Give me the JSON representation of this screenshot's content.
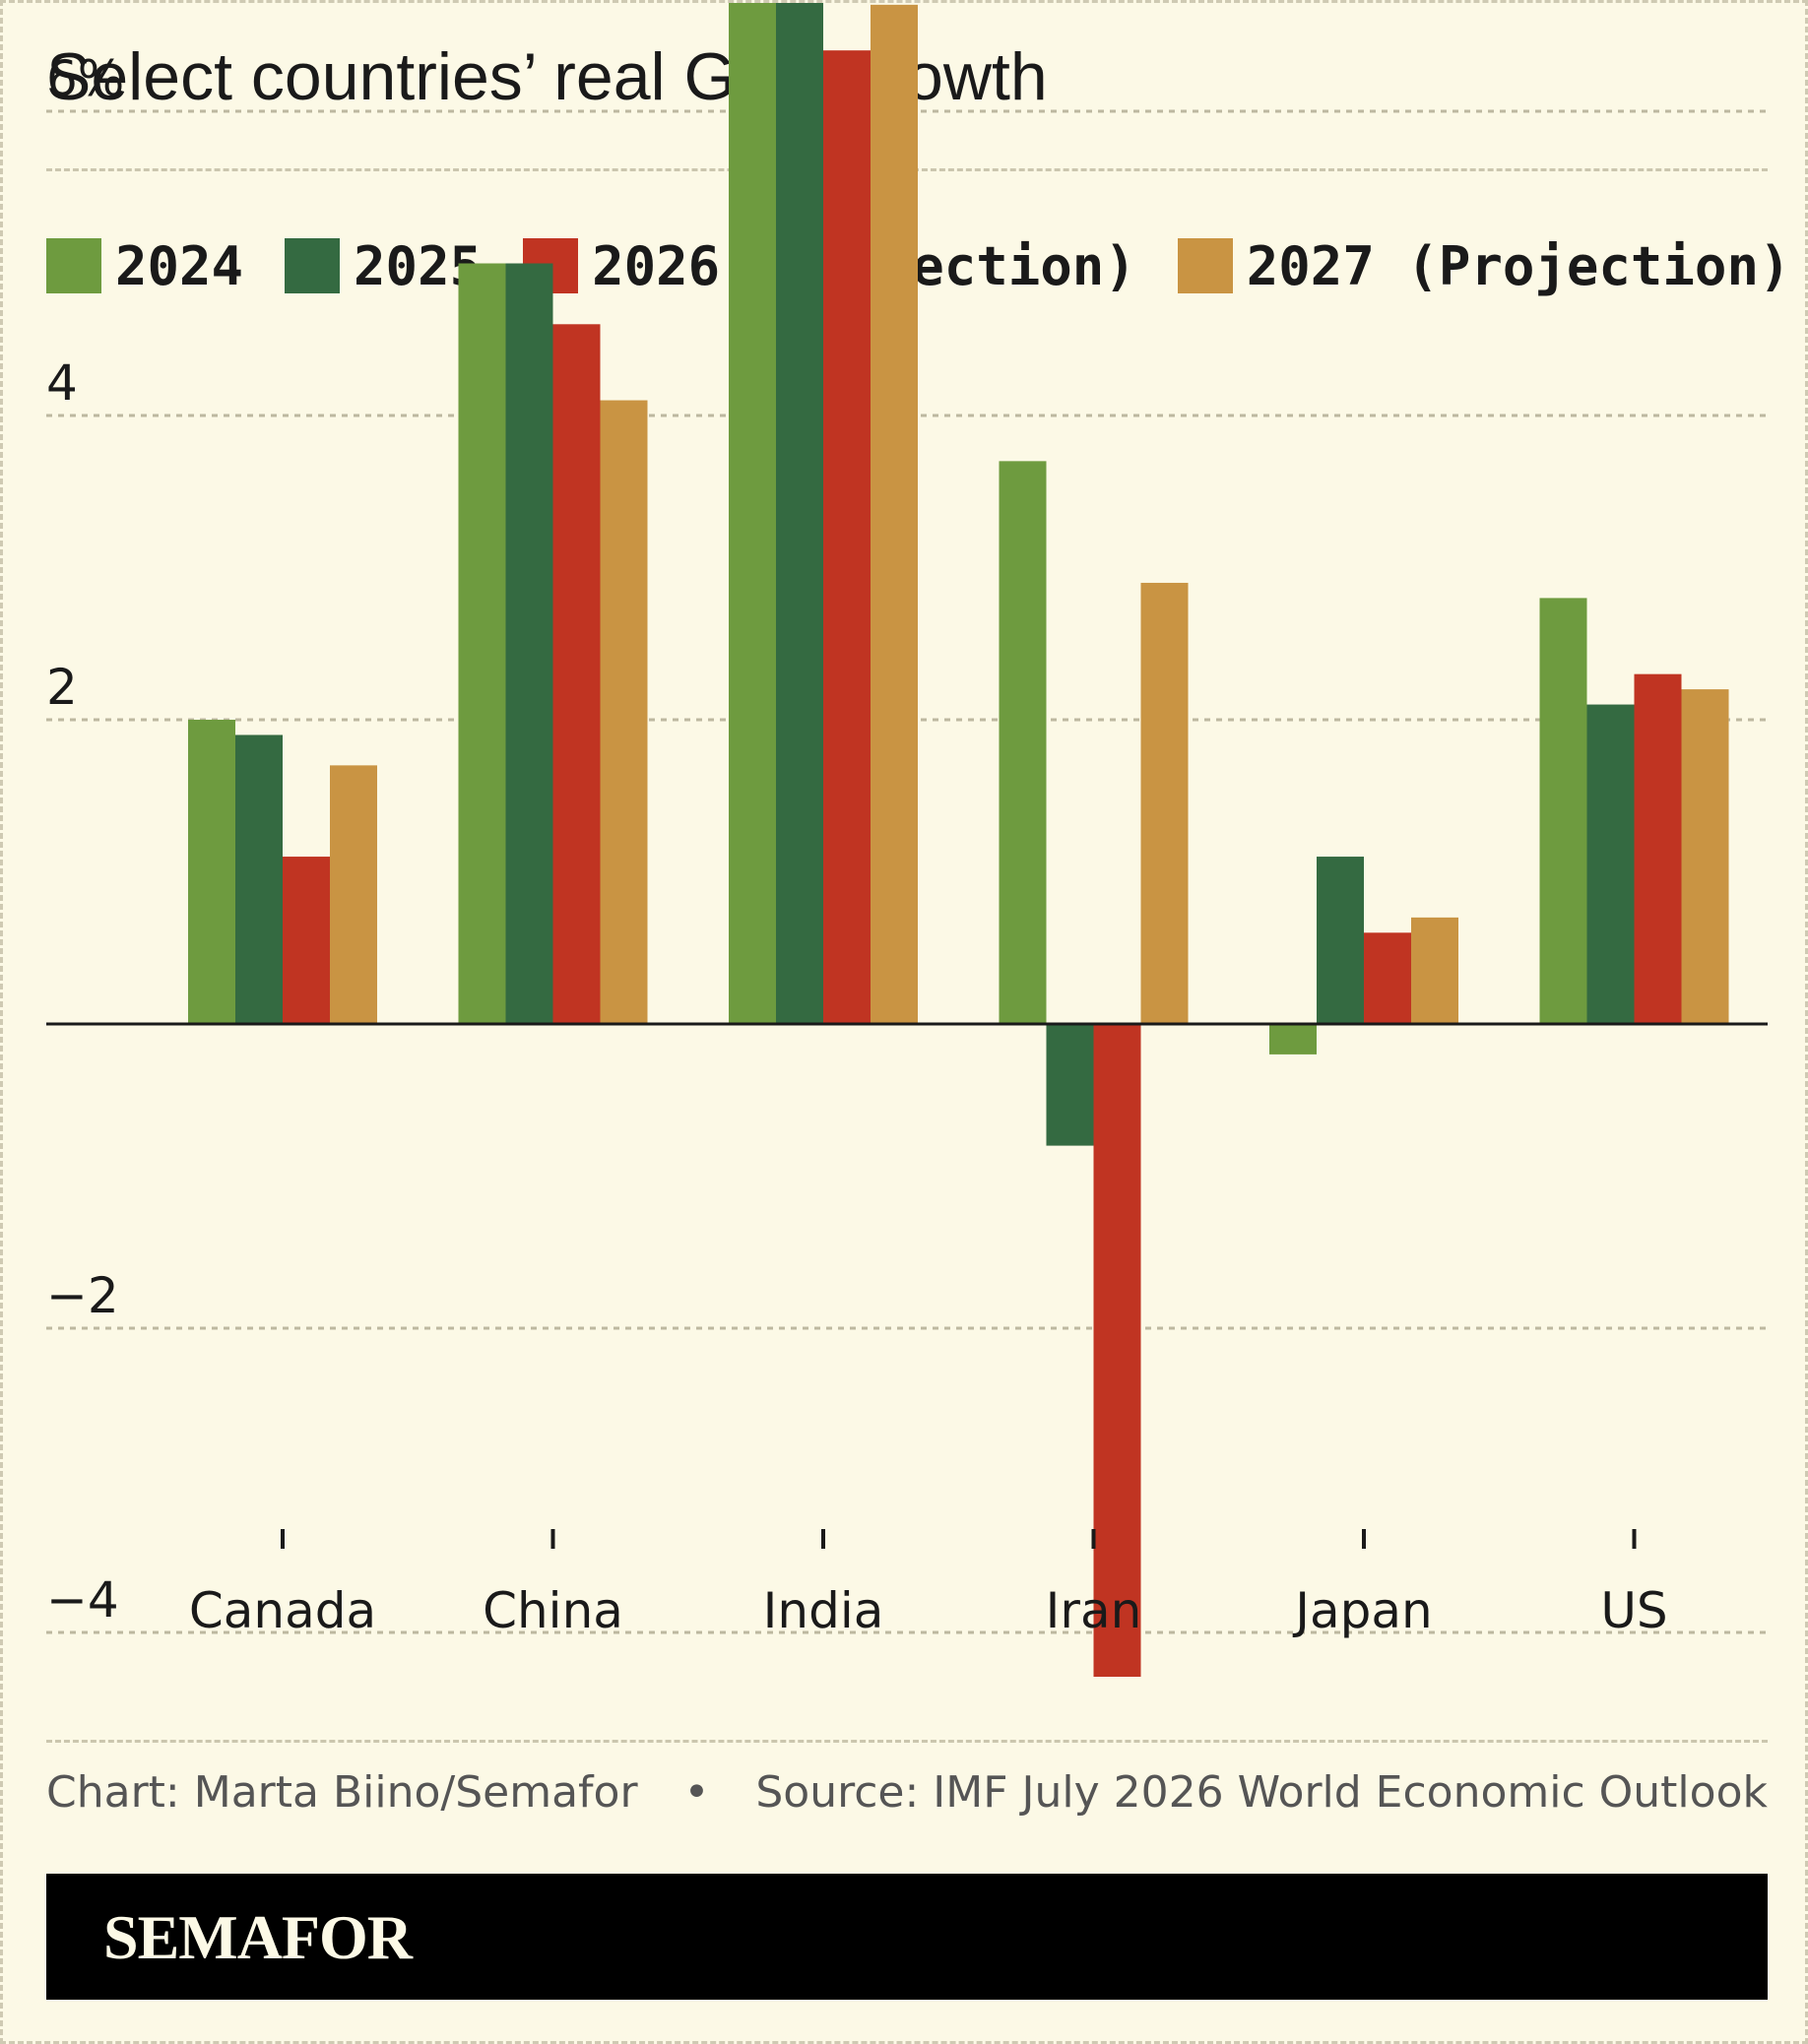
{
  "title": "Select countries’ real GDP growth",
  "legend": [
    {
      "label": "2024",
      "color": "#6e9b3f"
    },
    {
      "label": "2025",
      "color": "#346a41"
    },
    {
      "label": "2026 (Projection)",
      "color": "#c03422"
    },
    {
      "label": "2027 (Projection)",
      "color": "#c99443"
    }
  ],
  "footer": {
    "credit": "Chart: Marta Biino/Semafor",
    "separator": "•",
    "source": "Source: IMF July 2026 World Economic Outlook"
  },
  "brand": "SEMAFOR",
  "chart_data": {
    "type": "bar",
    "categories": [
      "Canada",
      "China",
      "India",
      "Iran",
      "Japan",
      "US"
    ],
    "series": [
      {
        "name": "2024",
        "values": [
          2.0,
          5.0,
          7.1,
          3.7,
          -0.2,
          2.8
        ]
      },
      {
        "name": "2025",
        "values": [
          1.9,
          5.0,
          7.7,
          -0.8,
          1.1,
          2.1
        ]
      },
      {
        "name": "2026 (Projection)",
        "values": [
          1.1,
          4.6,
          6.4,
          -5.4,
          0.6,
          2.3
        ]
      },
      {
        "name": "2027 (Projection)",
        "values": [
          1.7,
          4.1,
          6.7,
          2.9,
          0.7,
          2.2
        ]
      }
    ],
    "yticks": [
      -4,
      -2,
      2,
      4,
      6
    ],
    "ytick_labels": [
      "−4",
      "−2",
      "2",
      "4",
      "6%"
    ],
    "ylim": [
      -6.4,
      8.2
    ],
    "grid": true,
    "legend_position": "top-left"
  }
}
